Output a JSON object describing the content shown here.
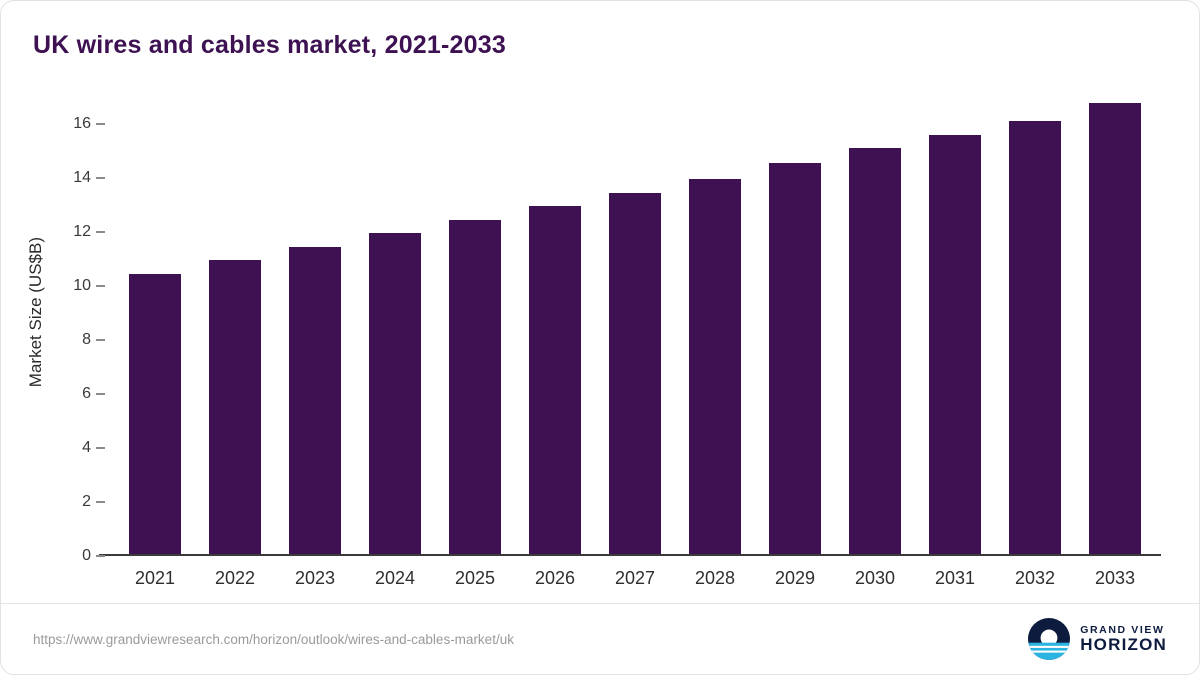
{
  "title": "UK wires and cables market, 2021-2033",
  "colors": {
    "bar": "#3d1152",
    "title": "#3d1152",
    "axis_text": "#3a3a3a",
    "url_text": "#9a9a9a",
    "brand_navy": "#0d1b3e",
    "brand_cyan": "#2bb4e2"
  },
  "chart_data": {
    "type": "bar",
    "title": "UK wires and cables market, 2021-2033",
    "categories": [
      "2021",
      "2022",
      "2023",
      "2024",
      "2025",
      "2026",
      "2027",
      "2028",
      "2029",
      "2030",
      "2031",
      "2032",
      "2033"
    ],
    "values": [
      10.45,
      10.95,
      11.45,
      11.95,
      12.45,
      12.95,
      13.45,
      13.95,
      14.55,
      15.1,
      15.6,
      16.1,
      16.75
    ],
    "xlabel": "",
    "ylabel": "Market Size (US$B)",
    "ylim": [
      0,
      17.1
    ],
    "yticks": [
      0,
      2,
      4,
      6,
      8,
      10,
      12,
      14,
      16
    ],
    "grid": false,
    "legend": "none",
    "bar_color": "#3d1152"
  },
  "footer": {
    "source_url": "https://www.grandviewresearch.com/horizon/outlook/wires-and-cables-market/uk",
    "brand_line1": "GRAND VIEW",
    "brand_line2": "HORIZON"
  }
}
